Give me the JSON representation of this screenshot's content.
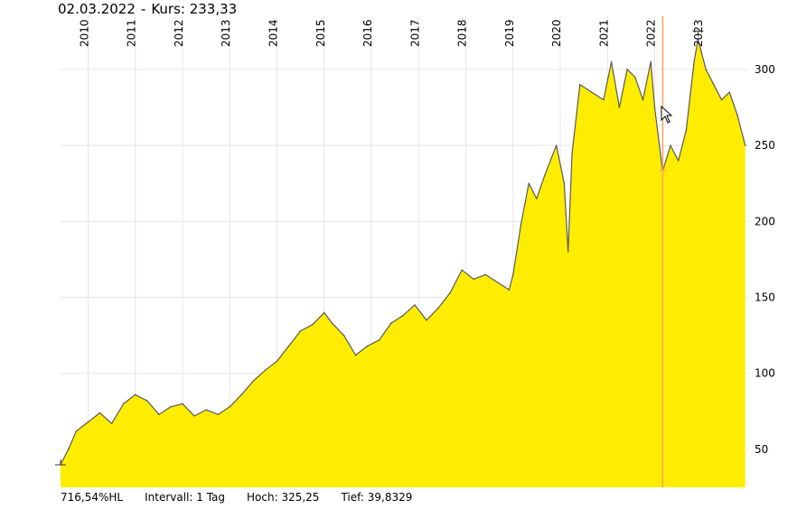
{
  "header": {
    "date": "02.03.2022",
    "separator": "-",
    "price_label": "Kurs: 233,33"
  },
  "footer": {
    "performance": "716,54%HL",
    "interval": "Intervall: 1 Tag",
    "high": "Hoch:  325,25",
    "low": "Tief: 39,8329"
  },
  "colors": {
    "fill": "#ffed00",
    "line": "#5a5a5a",
    "grid": "#e6e6e6",
    "crosshair": "#f4a460"
  },
  "chart_data": {
    "type": "area",
    "y_ticks": [
      "50",
      "100",
      "150",
      "200",
      "250",
      "300"
    ],
    "x_ticks": [
      "2010",
      "2011",
      "2012",
      "2013",
      "2014",
      "2015",
      "2016",
      "2017",
      "2018",
      "2019",
      "2020",
      "2021",
      "2022",
      "2023"
    ],
    "ylim": [
      25,
      335
    ],
    "xlim": [
      "2009-06-01",
      "2023-12-31"
    ],
    "grid": true,
    "crosshair_date": "2022-03-02",
    "crosshair_value": 233.33,
    "high": 325.25,
    "low": 39.8329,
    "series": [
      {
        "x": [
          "2009-06",
          "2009-08",
          "2009-10",
          "2010-01",
          "2010-04",
          "2010-07",
          "2010-10",
          "2011-01",
          "2011-04",
          "2011-07",
          "2011-10",
          "2012-01",
          "2012-04",
          "2012-07",
          "2012-10",
          "2013-01",
          "2013-04",
          "2013-07",
          "2013-10",
          "2014-01",
          "2014-04",
          "2014-07",
          "2014-10",
          "2015-01",
          "2015-03",
          "2015-06",
          "2015-09",
          "2015-12",
          "2016-03",
          "2016-06",
          "2016-09",
          "2016-12",
          "2017-03",
          "2017-06",
          "2017-09",
          "2017-12",
          "2018-03",
          "2018-06",
          "2018-09",
          "2018-12",
          "2019-01",
          "2019-03",
          "2019-05",
          "2019-07",
          "2019-09",
          "2019-12",
          "2020-02",
          "2020-03",
          "2020-04",
          "2020-06",
          "2020-09",
          "2020-12",
          "2021-02",
          "2021-04",
          "2021-06",
          "2021-08",
          "2021-10",
          "2021-12",
          "2022-01",
          "2022-03",
          "2022-05",
          "2022-07",
          "2022-09",
          "2022-11",
          "2022-12",
          "2023-02",
          "2023-04",
          "2023-06",
          "2023-08",
          "2023-10",
          "2023-12"
        ],
        "y": [
          40,
          50,
          62,
          68,
          74,
          67,
          80,
          86,
          82,
          73,
          78,
          80,
          72,
          76,
          73,
          78,
          86,
          95,
          102,
          108,
          118,
          128,
          132,
          140,
          133,
          125,
          112,
          118,
          122,
          133,
          138,
          145,
          135,
          143,
          153,
          168,
          162,
          165,
          160,
          155,
          165,
          198,
          225,
          215,
          230,
          250,
          225,
          180,
          245,
          290,
          285,
          280,
          305,
          275,
          300,
          295,
          280,
          305,
          275,
          233,
          250,
          240,
          260,
          305,
          320,
          300,
          290,
          280,
          285,
          270,
          250
        ]
      }
    ]
  }
}
